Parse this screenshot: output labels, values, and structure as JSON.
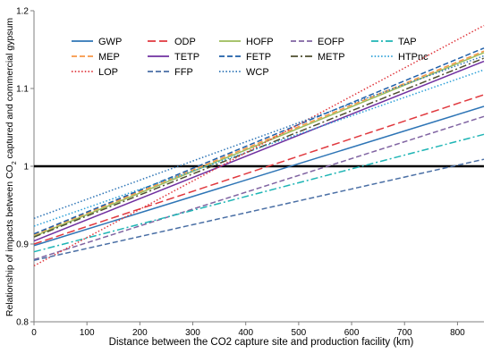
{
  "chart_data": {
    "type": "line",
    "xlabel": "Distance between the CO2 capture site and production facility (km)",
    "ylabel_parts": [
      "Relationship of impacts between CO",
      "2",
      " captured  and commercial gypsum"
    ],
    "xlim": [
      0,
      850
    ],
    "ylim": [
      0.8,
      1.2
    ],
    "x_ticks": [
      0,
      100,
      200,
      300,
      400,
      500,
      600,
      700,
      800
    ],
    "y_ticks": [
      0.8,
      0.9,
      1.0,
      1.1,
      1.2
    ],
    "y_tick_labels": [
      "0.8",
      "0.9",
      "1",
      "1.1",
      "1.2"
    ],
    "reference_line": {
      "y": 1.0,
      "color": "#000000"
    },
    "legend_position": "top-left",
    "series": [
      {
        "name": "GWP",
        "color": "#2E75B6",
        "dash": "solid",
        "x": [
          0,
          850
        ],
        "y": [
          0.898,
          1.077
        ]
      },
      {
        "name": "ODP",
        "color": "#E0383E",
        "dash": "longdash",
        "x": [
          0,
          850
        ],
        "y": [
          0.9,
          1.092
        ]
      },
      {
        "name": "HOFP",
        "color": "#9BBB59",
        "dash": "solid",
        "x": [
          0,
          850
        ],
        "y": [
          0.91,
          1.146
        ]
      },
      {
        "name": "EOFP",
        "color": "#8064A2",
        "dash": "dash",
        "x": [
          0,
          850
        ],
        "y": [
          0.88,
          1.064
        ]
      },
      {
        "name": "TAP",
        "color": "#1FB5B5",
        "dash": "dashdot",
        "x": [
          0,
          850
        ],
        "y": [
          0.89,
          1.041
        ]
      },
      {
        "name": "MEP",
        "color": "#F79646",
        "dash": "dash",
        "x": [
          0,
          850
        ],
        "y": [
          0.912,
          1.148
        ]
      },
      {
        "name": "TETP",
        "color": "#7030A0",
        "dash": "solid",
        "x": [
          0,
          850
        ],
        "y": [
          0.904,
          1.135
        ]
      },
      {
        "name": "FETP",
        "color": "#1F5FA8",
        "dash": "dash",
        "x": [
          0,
          850
        ],
        "y": [
          0.913,
          1.152
        ]
      },
      {
        "name": "METP",
        "color": "#4F4F2F",
        "dash": "dashdot",
        "x": [
          0,
          850
        ],
        "y": [
          0.909,
          1.139
        ]
      },
      {
        "name": "HTPnc",
        "color": "#2CA0D8",
        "dash": "dot",
        "x": [
          0,
          850
        ],
        "y": [
          0.923,
          1.124
        ]
      },
      {
        "name": "LOP",
        "color": "#E0383E",
        "dash": "dot",
        "x": [
          0,
          850
        ],
        "y": [
          0.872,
          1.181
        ]
      },
      {
        "name": "FFP",
        "color": "#4A6FA5",
        "dash": "dash",
        "x": [
          0,
          850
        ],
        "y": [
          0.879,
          1.009
        ]
      },
      {
        "name": "WCP",
        "color": "#2E75B6",
        "dash": "dot",
        "x": [
          0,
          850
        ],
        "y": [
          0.933,
          1.142
        ]
      }
    ]
  }
}
